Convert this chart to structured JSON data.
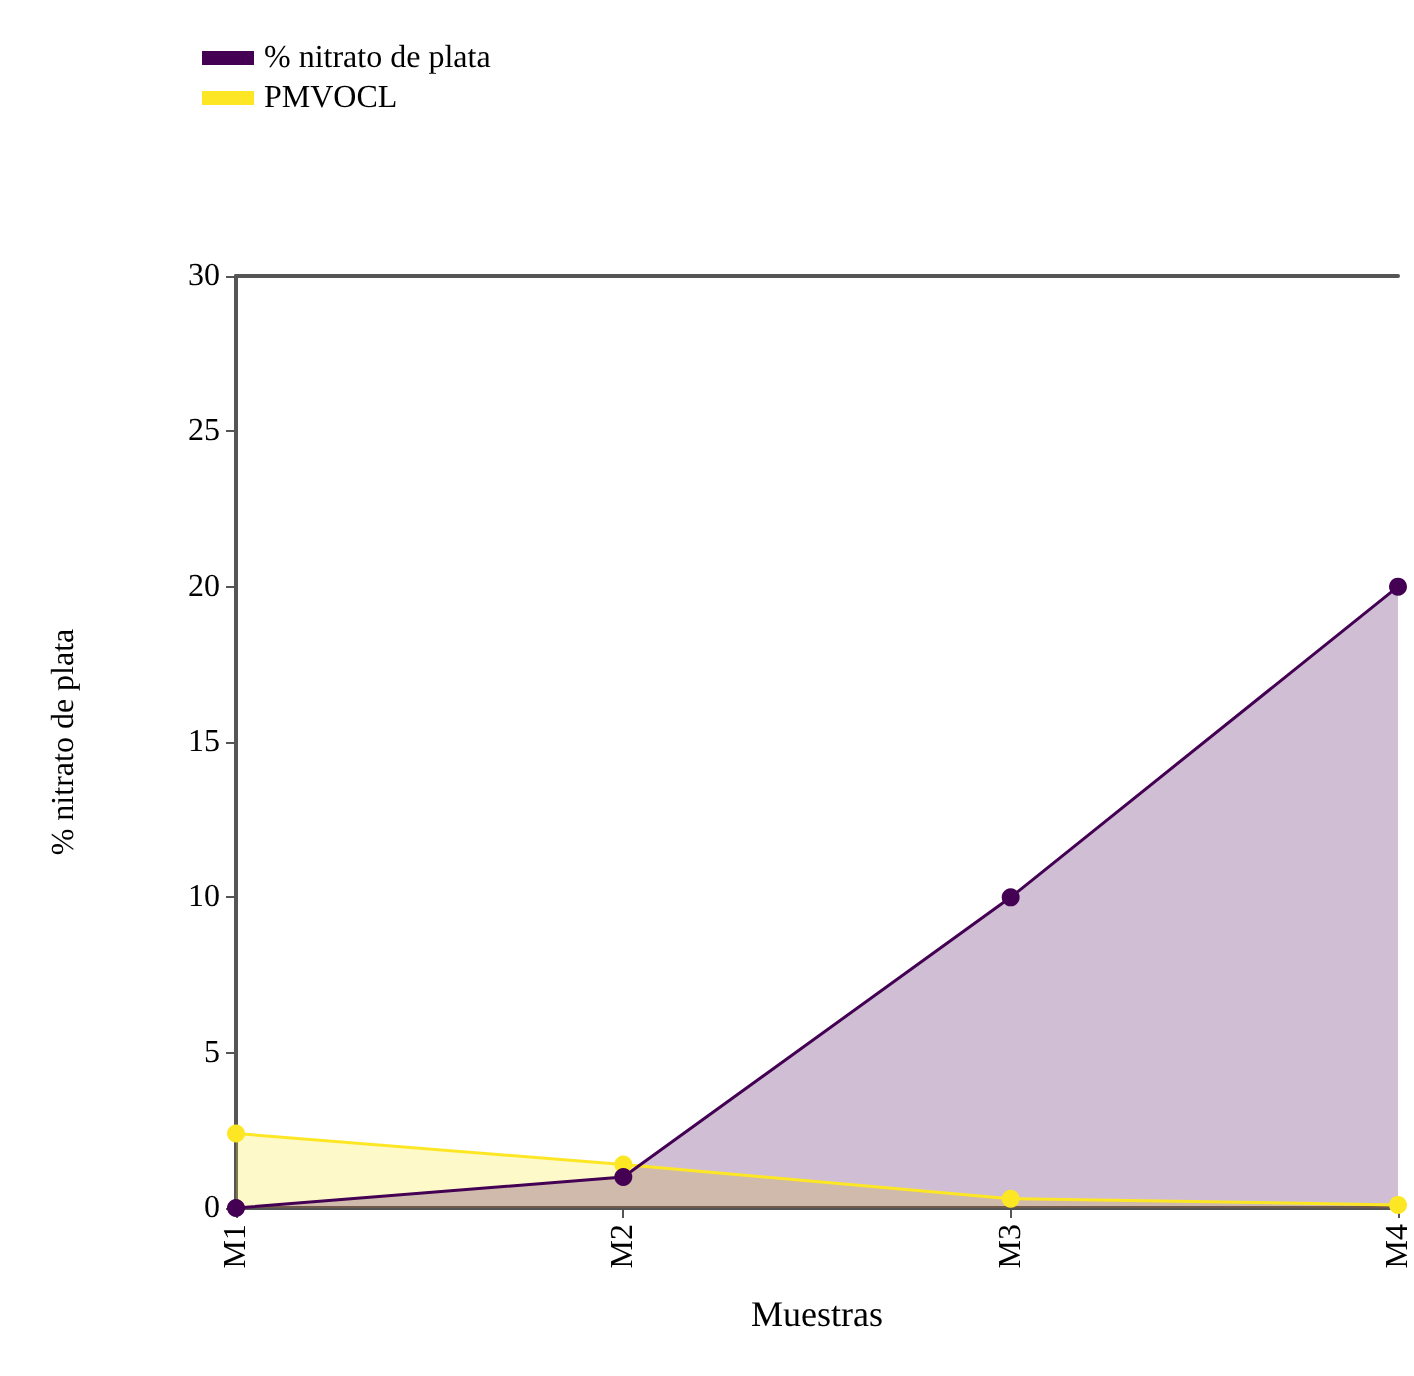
{
  "chart_data": {
    "type": "area",
    "xlabel": "Muestras",
    "ylabel": "% nitrato de plata",
    "categories": [
      "M1",
      "M2",
      "M3",
      "M4"
    ],
    "series": [
      {
        "name": "PMVOCL",
        "color": "#fde725",
        "values": [
          2.4,
          1.4,
          0.3,
          0.1
        ]
      },
      {
        "name": "% nitrato de plata",
        "color": "#440154",
        "values": [
          0,
          1,
          10,
          20
        ]
      }
    ],
    "ylim": [
      0,
      30
    ],
    "yticks": [
      0,
      5,
      10,
      15,
      20,
      25,
      30
    ],
    "legend": "top left",
    "marker": "circle",
    "grid": false
  }
}
